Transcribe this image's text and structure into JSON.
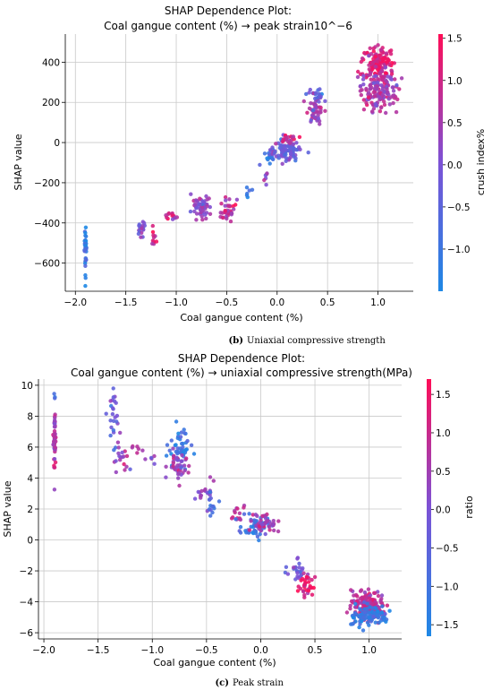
{
  "chart_data": [
    {
      "type": "scatter",
      "title_line1": "SHAP Dependence Plot:",
      "title_line2": "Coal gangue content (%) → peak strain10^−6",
      "xlabel": "Coal gangue content (%)",
      "ylabel": "SHAP value",
      "colorbar_label": "crush index%",
      "caption_letter": "(b)",
      "caption_text": "Uniaxial compressive strength",
      "xlim": [
        -2.1,
        1.35
      ],
      "ylim": [
        -740,
        540
      ],
      "xticks": [
        -2.0,
        -1.5,
        -1.0,
        -0.5,
        0.0,
        0.5,
        1.0
      ],
      "xtick_labels": [
        "−2.0",
        "−1.5",
        "−1.0",
        "−0.5",
        "0.0",
        "0.5",
        "1.0"
      ],
      "yticks": [
        -600,
        -400,
        -200,
        0,
        200,
        400
      ],
      "ytick_labels": [
        "−600",
        "−400",
        "−200",
        "0",
        "200",
        "400"
      ],
      "colorbar_range": [
        -1.5,
        1.55
      ],
      "colorbar_ticks": [
        -1.0,
        -0.5,
        0.0,
        0.5,
        1.0,
        1.5
      ],
      "colorbar_tick_labels": [
        "−1.0",
        "−0.5",
        "0.0",
        "0.5",
        "1.0",
        "1.5"
      ],
      "colormap": [
        "#1E88E5",
        "#7C52D6",
        "#FF0D57"
      ],
      "grid": true,
      "clusters": [
        {
          "x": -1.9,
          "y": -530,
          "sx": 0.005,
          "sy": 70,
          "n": 30,
          "c": -1.1
        },
        {
          "x": -1.35,
          "y": -430,
          "sx": 0.025,
          "sy": 20,
          "n": 18,
          "c": 0.0
        },
        {
          "x": -1.22,
          "y": -490,
          "sx": 0.02,
          "sy": 30,
          "n": 10,
          "c": 1.0
        },
        {
          "x": -1.05,
          "y": -365,
          "sx": 0.03,
          "sy": 12,
          "n": 14,
          "c": 0.8
        },
        {
          "x": -0.75,
          "y": -320,
          "sx": 0.05,
          "sy": 28,
          "n": 55,
          "c": 0.3
        },
        {
          "x": -0.48,
          "y": -345,
          "sx": 0.04,
          "sy": 35,
          "n": 35,
          "c": 0.7
        },
        {
          "x": -0.28,
          "y": -240,
          "sx": 0.02,
          "sy": 15,
          "n": 6,
          "c": -1.0
        },
        {
          "x": -0.1,
          "y": -180,
          "sx": 0.02,
          "sy": 15,
          "n": 6,
          "c": 0.2
        },
        {
          "x": -0.07,
          "y": -80,
          "sx": 0.03,
          "sy": 20,
          "n": 14,
          "c": -1.0
        },
        {
          "x": 0.08,
          "y": -40,
          "sx": 0.07,
          "sy": 25,
          "n": 90,
          "c": -0.3
        },
        {
          "x": 0.1,
          "y": 20,
          "sx": 0.05,
          "sy": 10,
          "n": 20,
          "c": 1.0
        },
        {
          "x": 0.38,
          "y": 170,
          "sx": 0.04,
          "sy": 35,
          "n": 45,
          "c": 0.5
        },
        {
          "x": 0.38,
          "y": 240,
          "sx": 0.04,
          "sy": 20,
          "n": 20,
          "c": -0.5
        },
        {
          "x": 1.0,
          "y": 400,
          "sx": 0.08,
          "sy": 40,
          "n": 140,
          "c": 1.1
        },
        {
          "x": 1.0,
          "y": 260,
          "sx": 0.09,
          "sy": 50,
          "n": 150,
          "c": 0.5
        }
      ]
    },
    {
      "type": "scatter",
      "title_line1": "SHAP Dependence Plot:",
      "title_line2": "Coal gangue content (%) → uniaxial compressive strength(MPa)",
      "xlabel": "Coal gangue content (%)",
      "ylabel": "SHAP value",
      "colorbar_label": "ratio",
      "caption_letter": "(c)",
      "caption_text": "Peak strain",
      "xlim": [
        -2.05,
        1.3
      ],
      "ylim": [
        -6.4,
        10.4
      ],
      "xticks": [
        -2.0,
        -1.5,
        -1.0,
        -0.5,
        0.0,
        0.5,
        1.0
      ],
      "xtick_labels": [
        "−2.0",
        "−1.5",
        "−1.0",
        "−0.5",
        "0.0",
        "0.5",
        "1.0"
      ],
      "yticks": [
        -6,
        -4,
        -2,
        0,
        2,
        4,
        6,
        8,
        10
      ],
      "ytick_labels": [
        "−6",
        "−4",
        "−2",
        "0",
        "2",
        "4",
        "6",
        "8",
        "10"
      ],
      "colorbar_range": [
        -1.65,
        1.7
      ],
      "colorbar_ticks": [
        -1.5,
        -1.0,
        -0.5,
        0.0,
        0.5,
        1.0,
        1.5
      ],
      "colorbar_tick_labels": [
        "−1.5",
        "−1.0",
        "−0.5",
        "0.0",
        "0.5",
        "1.0",
        "1.5"
      ],
      "colormap": [
        "#1E88E5",
        "#7C52D6",
        "#FF0D57"
      ],
      "grid": true,
      "clusters": [
        {
          "x": -1.9,
          "y": 6.4,
          "sx": 0.005,
          "sy": 1.0,
          "n": 55,
          "c": 0.6
        },
        {
          "x": -1.9,
          "y": 9.3,
          "sx": 0.005,
          "sy": 0.1,
          "n": 3,
          "c": -1.2
        },
        {
          "x": -1.35,
          "y": 8.0,
          "sx": 0.02,
          "sy": 1.0,
          "n": 25,
          "c": -0.2
        },
        {
          "x": -1.3,
          "y": 5.2,
          "sx": 0.04,
          "sy": 0.5,
          "n": 18,
          "c": 0.6
        },
        {
          "x": -1.15,
          "y": 5.8,
          "sx": 0.03,
          "sy": 0.3,
          "n": 6,
          "c": 0.9
        },
        {
          "x": -1.0,
          "y": 5.2,
          "sx": 0.03,
          "sy": 0.2,
          "n": 5,
          "c": 0.1
        },
        {
          "x": -0.75,
          "y": 6.0,
          "sx": 0.05,
          "sy": 0.6,
          "n": 45,
          "c": -1.2
        },
        {
          "x": -0.75,
          "y": 4.7,
          "sx": 0.05,
          "sy": 0.5,
          "n": 40,
          "c": 0.4
        },
        {
          "x": -0.5,
          "y": 2.9,
          "sx": 0.04,
          "sy": 0.4,
          "n": 20,
          "c": 0.2
        },
        {
          "x": -0.45,
          "y": 2.2,
          "sx": 0.04,
          "sy": 0.3,
          "n": 12,
          "c": -1.0
        },
        {
          "x": -0.2,
          "y": 1.5,
          "sx": 0.05,
          "sy": 0.4,
          "n": 15,
          "c": 0.8
        },
        {
          "x": -0.05,
          "y": 0.9,
          "sx": 0.06,
          "sy": 0.35,
          "n": 50,
          "c": -1.0
        },
        {
          "x": 0.05,
          "y": 1.1,
          "sx": 0.06,
          "sy": 0.3,
          "n": 40,
          "c": 0.5
        },
        {
          "x": 0.32,
          "y": -2.1,
          "sx": 0.04,
          "sy": 0.45,
          "n": 25,
          "c": -0.3
        },
        {
          "x": 0.42,
          "y": -3.0,
          "sx": 0.04,
          "sy": 0.3,
          "n": 35,
          "c": 1.2
        },
        {
          "x": 1.0,
          "y": -4.2,
          "sx": 0.08,
          "sy": 0.45,
          "n": 150,
          "c": 0.9
        },
        {
          "x": 1.0,
          "y": -4.9,
          "sx": 0.09,
          "sy": 0.35,
          "n": 100,
          "c": -1.2
        }
      ]
    }
  ]
}
